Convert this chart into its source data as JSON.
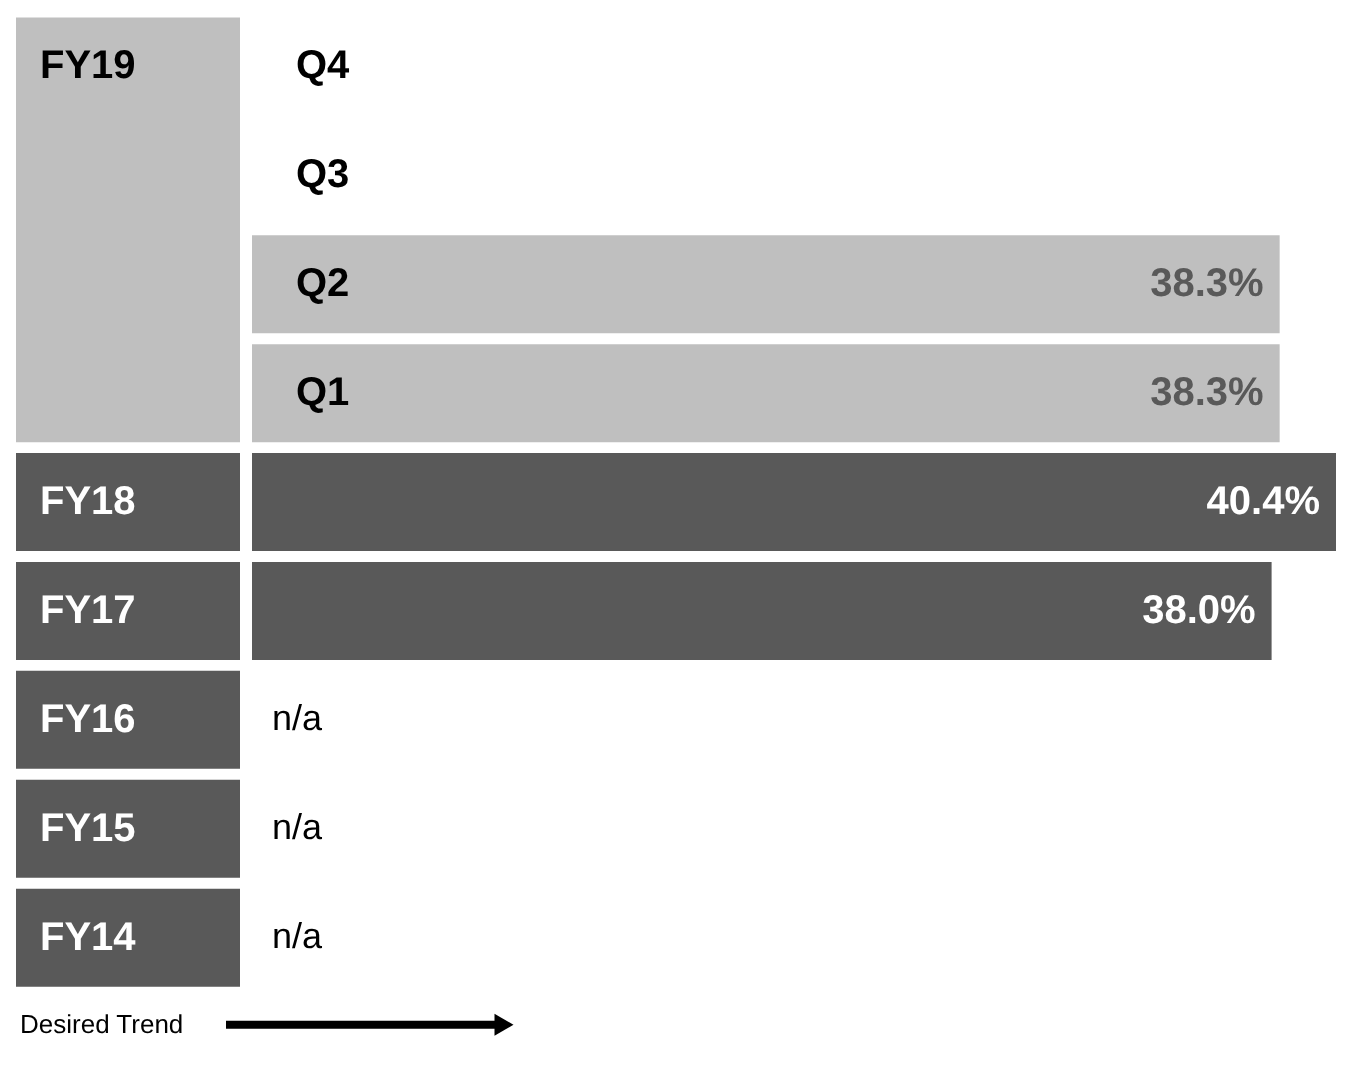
{
  "chart_data": {
    "type": "bar",
    "orientation": "horizontal",
    "categories": [
      "Q4",
      "Q3",
      "Q2",
      "Q1",
      "FY18",
      "FY17",
      "FY16",
      "FY15",
      "FY14"
    ],
    "values": [
      null,
      null,
      38.3,
      38.3,
      40.4,
      38.0,
      null,
      null,
      null
    ],
    "colors": [
      "#bfbfbf",
      "#bfbfbf",
      "#bfbfbf",
      "#bfbfbf",
      "#595959",
      "#595959",
      "#595959",
      "#595959",
      "#595959"
    ],
    "value_labels": [
      null,
      null,
      "38.3%",
      "38.3%",
      "40.4%",
      "38.0%",
      "n/a",
      "n/a",
      "n/a"
    ],
    "annotations": [
      "FY19",
      "Desired Trend"
    ]
  }
}
